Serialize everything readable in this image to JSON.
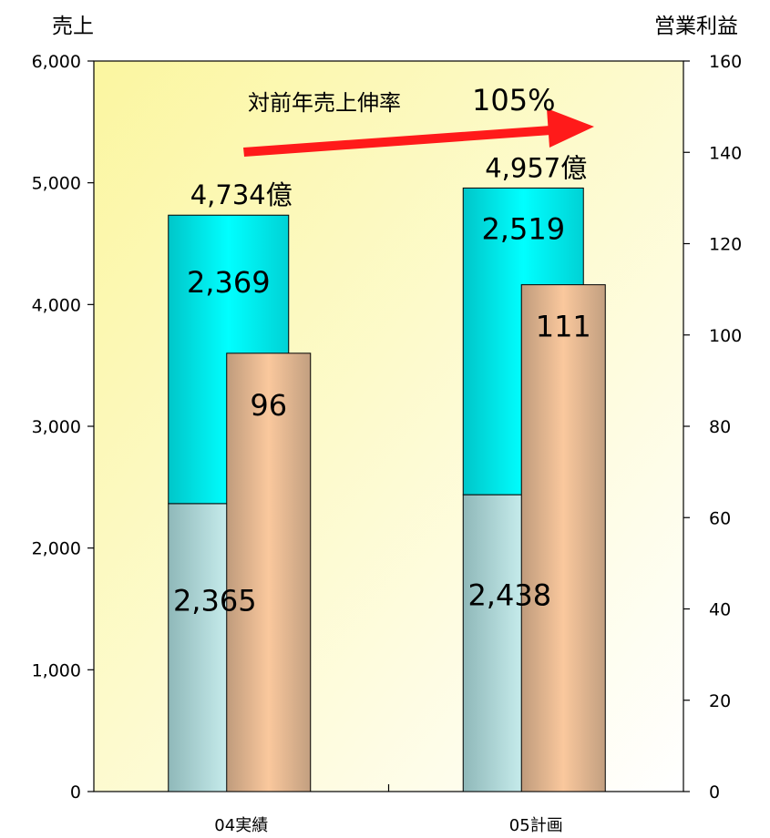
{
  "chart_data": {
    "type": "bar",
    "categories": [
      "04実績",
      "05計画"
    ],
    "left_axis": {
      "label": "売上",
      "ylim": [
        0,
        6000
      ],
      "ticks": [
        "0",
        "1,000",
        "2,000",
        "3,000",
        "4,000",
        "5,000",
        "6,000"
      ]
    },
    "right_axis": {
      "label": "営業利益",
      "ylim": [
        0,
        160
      ],
      "ticks": [
        "0",
        "20",
        "40",
        "60",
        "80",
        "100",
        "120",
        "140",
        "160"
      ]
    },
    "series": [
      {
        "stack": "sales",
        "axis": "left",
        "values": [
          2365,
          2438
        ],
        "labels": [
          "2,365",
          "2,438"
        ],
        "color": "#bfeff0"
      },
      {
        "stack": "sales",
        "axis": "left",
        "values": [
          2369,
          2519
        ],
        "labels": [
          "2,369",
          "2,519"
        ],
        "color": "#00e5e5"
      },
      {
        "stack": "profit",
        "axis": "right",
        "values": [
          96,
          111
        ],
        "labels": [
          "96",
          "111"
        ],
        "color": "#f7c79a"
      }
    ],
    "totals": [
      {
        "value": 4734,
        "label": "4,734億"
      },
      {
        "value": 4957,
        "label": "4,957億"
      }
    ],
    "annotation": {
      "label": "対前年売上伸率",
      "value": "105%"
    },
    "colors": {
      "plot_gradient_start": "#fbf6a0",
      "plot_gradient_end": "#ffffff",
      "arrow": "#ff1a1a"
    },
    "grid": false,
    "legend": "none"
  }
}
